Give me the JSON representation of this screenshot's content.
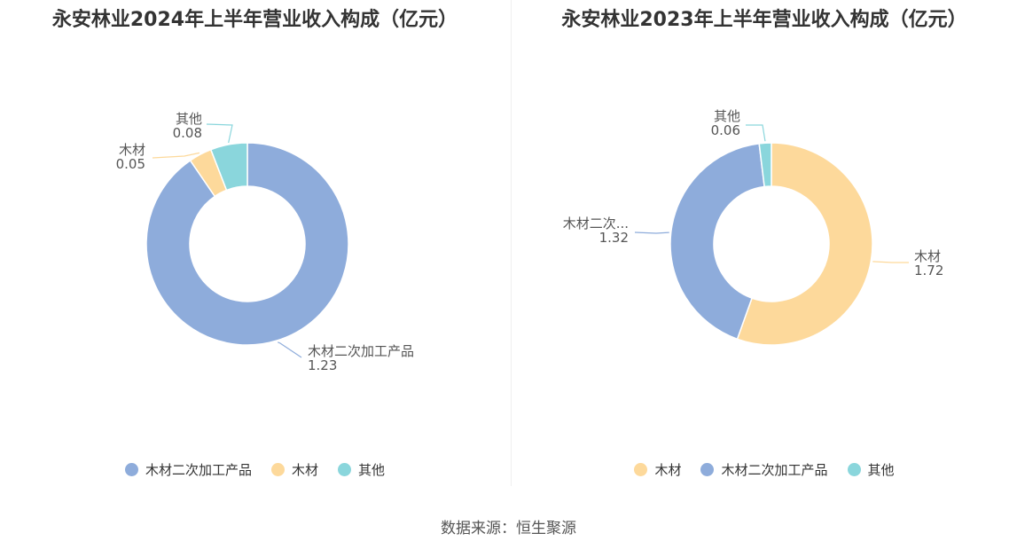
{
  "chart_data": [
    {
      "type": "pie",
      "title": "永安林业2024年上半年营业收入构成（亿元）",
      "slices": [
        {
          "name": "木材二次加工产品",
          "value": 1.23,
          "color": "#8eacdb"
        },
        {
          "name": "木材",
          "value": 0.05,
          "color": "#fdd99b"
        },
        {
          "name": "其他",
          "value": 0.08,
          "color": "#8ad6dc"
        }
      ],
      "legend": [
        "木材二次加工产品",
        "木材",
        "其他"
      ],
      "legend_position": "bottom"
    },
    {
      "type": "pie",
      "title": "永安林业2023年上半年营业收入构成（亿元）",
      "slices": [
        {
          "name": "木材",
          "value": 1.72,
          "label": "木材",
          "color": "#fdd99b"
        },
        {
          "name": "木材二次加工产品",
          "value": 1.32,
          "label": "木材二次...",
          "color": "#8eacdb"
        },
        {
          "name": "其他",
          "value": 0.06,
          "label": "其他",
          "color": "#8ad6dc"
        }
      ],
      "legend": [
        "木材",
        "木材二次加工产品",
        "其他"
      ],
      "legend_position": "bottom"
    }
  ],
  "source_text": "数据来源：恒生聚源"
}
